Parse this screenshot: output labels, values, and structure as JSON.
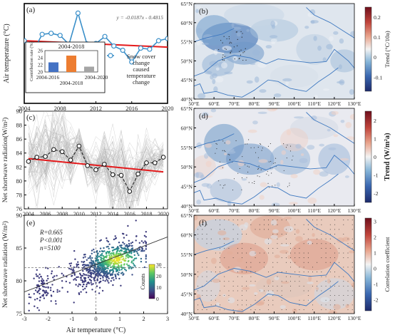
{
  "figure": {
    "background": "#ffffff"
  },
  "chart_data": [
    {
      "panel": "a",
      "type": "line",
      "panel_label": "(a)",
      "ylabel": "Air temperature (°C)",
      "x_ticks": [
        "2004",
        "2008",
        "2012",
        "2016",
        "2020"
      ],
      "xlim": [
        2004,
        2020
      ],
      "ylim": [
        -3.5,
        1.2
      ],
      "series": [
        {
          "name": "Snow cover change caused temperature change",
          "color": "#3a8fc9",
          "x": [
            2004,
            2005,
            2006,
            2007,
            2008,
            2009,
            2010,
            2011,
            2012,
            2013,
            2014,
            2015,
            2016,
            2017,
            2018,
            2019,
            2020
          ],
          "values": [
            -0.55,
            -1.05,
            -0.25,
            -0.2,
            -0.3,
            -0.72,
            0.75,
            -0.7,
            -0.68,
            -0.35,
            -0.8,
            -1.0,
            -1.55,
            -0.9,
            -0.95,
            -0.55,
            -0.45
          ]
        }
      ],
      "trend": {
        "equation": "y = -0.0187x - 0.4815",
        "color": "#e41a1c",
        "y_start": -0.55,
        "y_end": -0.85
      },
      "legend": {
        "line1": "Snow cover",
        "line2": "change",
        "line3": "caused",
        "line4": "temperature",
        "line5": "change"
      },
      "inset": {
        "type": "bar",
        "title": "2004-2018",
        "ylabel": "Contribution rate (%)",
        "categories": [
          "2004-2016",
          "2004-2018",
          "2004-2020"
        ],
        "values": [
          22.7,
          24.6,
          21.5
        ],
        "colors": [
          "#4472c4",
          "#ed7d31",
          "#a5a5a5"
        ],
        "ylim": [
          20,
          26
        ],
        "y_ticks": [
          "20",
          "22",
          "24",
          "26"
        ]
      }
    },
    {
      "panel": "c",
      "type": "line",
      "panel_label": "(c)",
      "ylabel": "Net shortwave radiation(W/m²)",
      "x_ticks": [
        "2004",
        "2006",
        "2008",
        "2010",
        "2012",
        "2014",
        "2016",
        "2018",
        "2020"
      ],
      "y_ticks": [
        "76",
        "78",
        "80",
        "82",
        "84",
        "86",
        "88",
        "90"
      ],
      "xlim": [
        2003.5,
        2020.5
      ],
      "ylim": [
        76,
        90
      ],
      "series": [
        {
          "name": "Net shortwave radiation",
          "color": "#222222",
          "x": [
            2004,
            2005,
            2006,
            2007,
            2008,
            2009,
            2010,
            2011,
            2012,
            2013,
            2014,
            2015,
            2016,
            2017,
            2018,
            2019,
            2020
          ],
          "values": [
            82.8,
            83.4,
            83.5,
            84.5,
            84.2,
            83.0,
            85.0,
            82.2,
            81.6,
            82.4,
            80.9,
            80.8,
            78.5,
            81.0,
            82.6,
            82.6,
            83.4
          ]
        }
      ],
      "trend": {
        "color": "#e41a1c",
        "y_start": 83.2,
        "y_end": 81.3
      }
    },
    {
      "panel": "e",
      "type": "scatter",
      "panel_label": "(e)",
      "xlabel": "Air temperature (°C)",
      "ylabel": "Net shortwave radiation (W/m²)",
      "x_ticks": [
        "-3",
        "-2",
        "-1",
        "0",
        "1",
        "2",
        "3"
      ],
      "y_ticks": [
        "75",
        "80",
        "85",
        "90"
      ],
      "xlim": [
        -3,
        3
      ],
      "ylim": [
        75,
        90
      ],
      "stats": {
        "r": "R=0.665",
        "p": "P<0.001",
        "n": "n=5100"
      },
      "fit": {
        "x": [
          -3,
          3
        ],
        "y": [
          78.3,
          86.7
        ]
      },
      "reference": {
        "x": 0,
        "y": 82
      },
      "colorbar": {
        "label": "Counts",
        "ticks": [
          "30",
          "20",
          "10",
          "0"
        ],
        "range": [
          0,
          30
        ]
      }
    },
    {
      "panel": "b",
      "type": "heatmap",
      "panel_label": "(b)",
      "x_ticks": [
        "50°E",
        "60°E",
        "70°E",
        "80°E",
        "90°E",
        "100°E",
        "110°E",
        "120°E",
        "130°E"
      ],
      "y_ticks": [
        "65°N",
        "60°N",
        "55°N",
        "50°N",
        "45°N",
        "40°N"
      ],
      "colorbar": {
        "label": "Trend (°C/10a)",
        "ticks": [
          "0.2",
          "0.1",
          "0",
          "-0.1"
        ],
        "range": [
          -0.17,
          0.25
        ]
      }
    },
    {
      "panel": "d",
      "type": "heatmap",
      "panel_label": "(d)",
      "x_ticks": [
        "50°E",
        "60°E",
        "70°E",
        "80°E",
        "90°E",
        "100°E",
        "110°E",
        "120°E",
        "130°E"
      ],
      "y_ticks": [
        "65°N",
        "60°N",
        "55°N",
        "50°N",
        "45°N",
        "40°N"
      ],
      "colorbar": {
        "label": "Trend (W/m²a)",
        "ticks": [
          "2",
          "1",
          "0",
          "-1",
          "-2"
        ],
        "range": [
          -2.5,
          2.5
        ]
      }
    },
    {
      "panel": "f",
      "type": "heatmap",
      "panel_label": "(f)",
      "x_ticks": [
        "50°E",
        "60°E",
        "70°E",
        "80°E",
        "90°E",
        "100°E",
        "110°E",
        "120°E",
        "130°E"
      ],
      "y_ticks": [
        "65°N",
        "60°N",
        "55°N",
        "50°N",
        "45°N",
        "40°N"
      ],
      "colorbar": {
        "label": "Correlation coefficient",
        "ticks": [
          "3",
          "2",
          "1",
          "0",
          "-1",
          "-2"
        ],
        "range": [
          -2.7,
          3.2
        ]
      }
    }
  ]
}
